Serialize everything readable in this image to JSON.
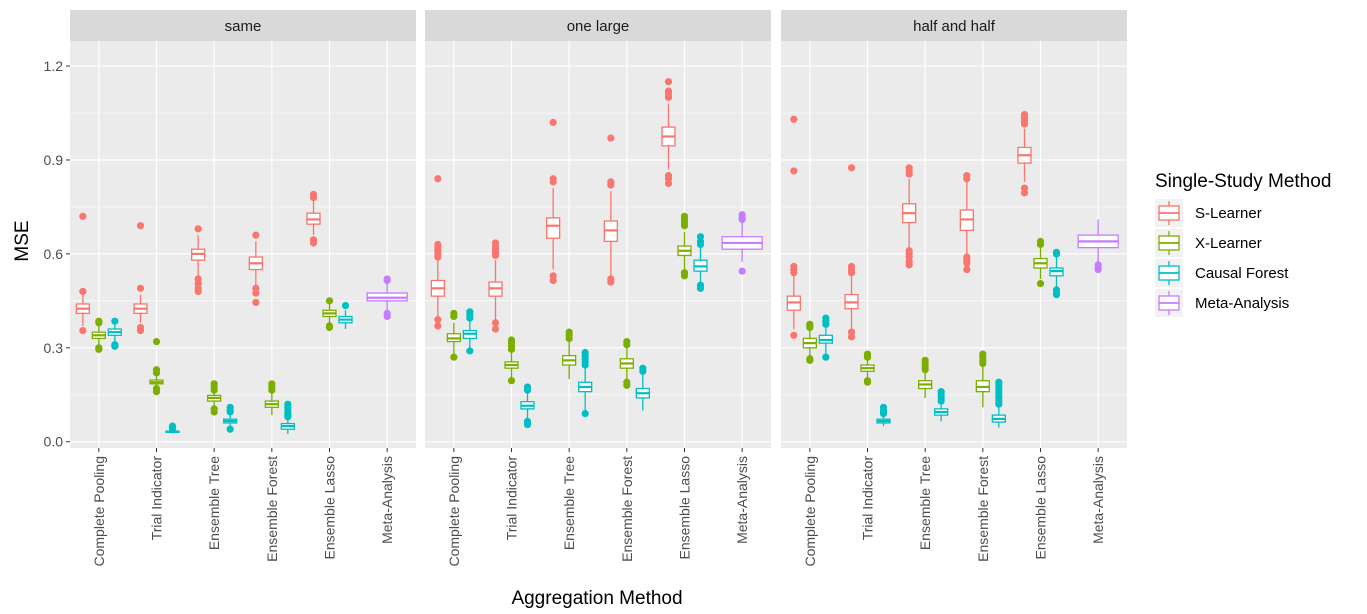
{
  "chart_data": {
    "type": "boxplot",
    "xlabel": "Aggregation Method",
    "ylabel": "MSE",
    "ylim": [
      -0.02,
      1.28
    ],
    "yticks": [
      0.0,
      0.3,
      0.6,
      0.9,
      1.2
    ],
    "ytick_labels": [
      "0.0",
      "0.3",
      "0.6",
      "0.9",
      "1.2"
    ],
    "grid": true,
    "legend": {
      "title": "Single-Study Method",
      "position": "right",
      "entries": [
        {
          "name": "S-Learner",
          "color": "#F8766D"
        },
        {
          "name": "X-Learner",
          "color": "#7CAE00"
        },
        {
          "name": "Causal Forest",
          "color": "#00BFC4"
        },
        {
          "name": "Meta-Analysis",
          "color": "#C77CFF"
        }
      ]
    },
    "categories": [
      "Complete Pooling",
      "Trial Indicator",
      "Ensemble Tree",
      "Ensemble Forest",
      "Ensemble Lasso",
      "Meta-Analysis"
    ],
    "panels": [
      {
        "title": "same",
        "boxes": [
          {
            "cat": 0,
            "method": "S-Learner",
            "whisker_low": 0.37,
            "q1": 0.41,
            "median": 0.425,
            "q3": 0.44,
            "whisker_high": 0.47,
            "outliers": [
              0.72,
              0.48,
              0.355
            ]
          },
          {
            "cat": 0,
            "method": "X-Learner",
            "whisker_low": 0.31,
            "q1": 0.33,
            "median": 0.34,
            "q3": 0.35,
            "whisker_high": 0.37,
            "outliers": [
              0.385,
              0.38,
              0.3,
              0.295
            ]
          },
          {
            "cat": 0,
            "method": "Causal Forest",
            "whisker_low": 0.32,
            "q1": 0.34,
            "median": 0.35,
            "q3": 0.36,
            "whisker_high": 0.38,
            "outliers": [
              0.385,
              0.31,
              0.305
            ]
          },
          {
            "cat": 1,
            "method": "S-Learner",
            "whisker_low": 0.38,
            "q1": 0.41,
            "median": 0.425,
            "q3": 0.44,
            "whisker_high": 0.47,
            "outliers": [
              0.69,
              0.49,
              0.365,
              0.355
            ]
          },
          {
            "cat": 1,
            "method": "X-Learner",
            "whisker_low": 0.17,
            "q1": 0.185,
            "median": 0.19,
            "q3": 0.197,
            "whisker_high": 0.21,
            "outliers": [
              0.32,
              0.23,
              0.22,
              0.17,
              0.16
            ]
          },
          {
            "cat": 1,
            "method": "Causal Forest",
            "whisker_low": 0.026,
            "q1": 0.03,
            "median": 0.032,
            "q3": 0.034,
            "whisker_high": 0.038,
            "outliers": [
              0.05,
              0.045,
              0.042
            ]
          },
          {
            "cat": 2,
            "method": "S-Learner",
            "whisker_low": 0.53,
            "q1": 0.58,
            "median": 0.6,
            "q3": 0.615,
            "whisker_high": 0.66,
            "outliers": [
              0.68,
              0.52,
              0.505,
              0.49,
              0.48
            ]
          },
          {
            "cat": 2,
            "method": "X-Learner",
            "whisker_low": 0.11,
            "q1": 0.13,
            "median": 0.14,
            "q3": 0.148,
            "whisker_high": 0.165,
            "outliers": [
              0.185,
              0.175,
              0.165,
              0.105,
              0.095
            ]
          },
          {
            "cat": 2,
            "method": "Causal Forest",
            "whisker_low": 0.048,
            "q1": 0.06,
            "median": 0.066,
            "q3": 0.072,
            "whisker_high": 0.085,
            "outliers": [
              0.11,
              0.1,
              0.095,
              0.04
            ]
          },
          {
            "cat": 3,
            "method": "S-Learner",
            "whisker_low": 0.5,
            "q1": 0.55,
            "median": 0.57,
            "q3": 0.59,
            "whisker_high": 0.64,
            "outliers": [
              0.66,
              0.49,
              0.475,
              0.445
            ]
          },
          {
            "cat": 3,
            "method": "X-Learner",
            "whisker_low": 0.085,
            "q1": 0.11,
            "median": 0.12,
            "q3": 0.13,
            "whisker_high": 0.16,
            "outliers": [
              0.185,
              0.175,
              0.165
            ]
          },
          {
            "cat": 3,
            "method": "Causal Forest",
            "whisker_low": 0.025,
            "q1": 0.04,
            "median": 0.05,
            "q3": 0.058,
            "whisker_high": 0.075,
            "outliers": [
              0.12,
              0.11,
              0.1,
              0.09,
              0.085,
              0.08
            ]
          },
          {
            "cat": 4,
            "method": "S-Learner",
            "whisker_low": 0.66,
            "q1": 0.695,
            "median": 0.71,
            "q3": 0.73,
            "whisker_high": 0.77,
            "outliers": [
              0.79,
              0.78,
              0.645,
              0.635
            ]
          },
          {
            "cat": 4,
            "method": "X-Learner",
            "whisker_low": 0.38,
            "q1": 0.4,
            "median": 0.41,
            "q3": 0.42,
            "whisker_high": 0.44,
            "outliers": [
              0.45,
              0.37,
              0.365
            ]
          },
          {
            "cat": 4,
            "method": "Causal Forest",
            "whisker_low": 0.36,
            "q1": 0.38,
            "median": 0.39,
            "q3": 0.4,
            "whisker_high": 0.42,
            "outliers": [
              0.435
            ]
          },
          {
            "cat": 5,
            "method": "Meta-Analysis",
            "whisker_low": 0.415,
            "q1": 0.45,
            "median": 0.46,
            "q3": 0.475,
            "whisker_high": 0.51,
            "outliers": [
              0.52,
              0.515,
              0.41,
              0.4
            ]
          }
        ]
      },
      {
        "title": "one large",
        "boxes": [
          {
            "cat": 0,
            "method": "S-Learner",
            "whisker_low": 0.4,
            "q1": 0.465,
            "median": 0.49,
            "q3": 0.515,
            "whisker_high": 0.58,
            "outliers": [
              0.84,
              0.63,
              0.62,
              0.61,
              0.6,
              0.59,
              0.39,
              0.37
            ]
          },
          {
            "cat": 0,
            "method": "X-Learner",
            "whisker_low": 0.28,
            "q1": 0.32,
            "median": 0.33,
            "q3": 0.345,
            "whisker_high": 0.38,
            "outliers": [
              0.41,
              0.4,
              0.27
            ]
          },
          {
            "cat": 0,
            "method": "Causal Forest",
            "whisker_low": 0.3,
            "q1": 0.33,
            "median": 0.345,
            "q3": 0.355,
            "whisker_high": 0.39,
            "outliers": [
              0.415,
              0.405,
              0.395,
              0.29
            ]
          },
          {
            "cat": 1,
            "method": "S-Learner",
            "whisker_low": 0.39,
            "q1": 0.465,
            "median": 0.49,
            "q3": 0.51,
            "whisker_high": 0.58,
            "outliers": [
              0.635,
              0.625,
              0.615,
              0.605,
              0.595,
              0.38,
              0.36
            ]
          },
          {
            "cat": 1,
            "method": "X-Learner",
            "whisker_low": 0.2,
            "q1": 0.235,
            "median": 0.245,
            "q3": 0.255,
            "whisker_high": 0.29,
            "outliers": [
              0.325,
              0.315,
              0.305,
              0.295,
              0.195
            ]
          },
          {
            "cat": 1,
            "method": "Causal Forest",
            "whisker_low": 0.07,
            "q1": 0.105,
            "median": 0.115,
            "q3": 0.128,
            "whisker_high": 0.16,
            "outliers": [
              0.175,
              0.165,
              0.065,
              0.06,
              0.055
            ]
          },
          {
            "cat": 2,
            "method": "S-Learner",
            "whisker_low": 0.55,
            "q1": 0.65,
            "median": 0.69,
            "q3": 0.715,
            "whisker_high": 0.81,
            "outliers": [
              1.02,
              0.84,
              0.83,
              0.53,
              0.515
            ]
          },
          {
            "cat": 2,
            "method": "X-Learner",
            "whisker_low": 0.2,
            "q1": 0.245,
            "median": 0.26,
            "q3": 0.275,
            "whisker_high": 0.32,
            "outliers": [
              0.35,
              0.34,
              0.33
            ]
          },
          {
            "cat": 2,
            "method": "Causal Forest",
            "whisker_low": 0.095,
            "q1": 0.16,
            "median": 0.175,
            "q3": 0.19,
            "whisker_high": 0.235,
            "outliers": [
              0.285,
              0.275,
              0.265,
              0.255,
              0.245,
              0.09
            ]
          },
          {
            "cat": 3,
            "method": "S-Learner",
            "whisker_low": 0.53,
            "q1": 0.64,
            "median": 0.675,
            "q3": 0.705,
            "whisker_high": 0.8,
            "outliers": [
              0.97,
              0.83,
              0.82,
              0.52,
              0.51
            ]
          },
          {
            "cat": 3,
            "method": "X-Learner",
            "whisker_low": 0.2,
            "q1": 0.235,
            "median": 0.25,
            "q3": 0.265,
            "whisker_high": 0.3,
            "outliers": [
              0.32,
              0.31,
              0.19,
              0.18
            ]
          },
          {
            "cat": 3,
            "method": "Causal Forest",
            "whisker_low": 0.1,
            "q1": 0.14,
            "median": 0.155,
            "q3": 0.17,
            "whisker_high": 0.215,
            "outliers": [
              0.235,
              0.225
            ]
          },
          {
            "cat": 4,
            "method": "S-Learner",
            "whisker_low": 0.87,
            "q1": 0.945,
            "median": 0.975,
            "q3": 1.005,
            "whisker_high": 1.08,
            "outliers": [
              1.15,
              1.12,
              1.11,
              1.1,
              0.85,
              0.84,
              0.825
            ]
          },
          {
            "cat": 4,
            "method": "X-Learner",
            "whisker_low": 0.55,
            "q1": 0.595,
            "median": 0.61,
            "q3": 0.625,
            "whisker_high": 0.67,
            "outliers": [
              0.72,
              0.71,
              0.7,
              0.69,
              0.54,
              0.53
            ]
          },
          {
            "cat": 4,
            "method": "Causal Forest",
            "whisker_low": 0.51,
            "q1": 0.545,
            "median": 0.56,
            "q3": 0.58,
            "whisker_high": 0.62,
            "outliers": [
              0.655,
              0.64,
              0.63,
              0.5,
              0.49
            ]
          },
          {
            "cat": 5,
            "method": "Meta-Analysis",
            "whisker_low": 0.575,
            "q1": 0.615,
            "median": 0.635,
            "q3": 0.655,
            "whisker_high": 0.7,
            "outliers": [
              0.725,
              0.715,
              0.71,
              0.545
            ]
          }
        ]
      },
      {
        "title": "half and half",
        "boxes": [
          {
            "cat": 0,
            "method": "S-Learner",
            "whisker_low": 0.36,
            "q1": 0.42,
            "median": 0.445,
            "q3": 0.465,
            "whisker_high": 0.53,
            "outliers": [
              1.03,
              0.865,
              0.56,
              0.55,
              0.54,
              0.34
            ]
          },
          {
            "cat": 0,
            "method": "X-Learner",
            "whisker_low": 0.275,
            "q1": 0.3,
            "median": 0.315,
            "q3": 0.33,
            "whisker_high": 0.36,
            "outliers": [
              0.375,
              0.37,
              0.365,
              0.265,
              0.26
            ]
          },
          {
            "cat": 0,
            "method": "Causal Forest",
            "whisker_low": 0.28,
            "q1": 0.315,
            "median": 0.325,
            "q3": 0.34,
            "whisker_high": 0.37,
            "outliers": [
              0.395,
              0.385,
              0.375,
              0.27
            ]
          },
          {
            "cat": 1,
            "method": "S-Learner",
            "whisker_low": 0.36,
            "q1": 0.425,
            "median": 0.445,
            "q3": 0.47,
            "whisker_high": 0.53,
            "outliers": [
              0.875,
              0.56,
              0.55,
              0.54,
              0.35,
              0.335
            ]
          },
          {
            "cat": 1,
            "method": "X-Learner",
            "whisker_low": 0.205,
            "q1": 0.225,
            "median": 0.235,
            "q3": 0.245,
            "whisker_high": 0.265,
            "outliers": [
              0.28,
              0.275,
              0.27,
              0.195,
              0.19
            ]
          },
          {
            "cat": 1,
            "method": "Causal Forest",
            "whisker_low": 0.05,
            "q1": 0.06,
            "median": 0.066,
            "q3": 0.072,
            "whisker_high": 0.085,
            "outliers": [
              0.11,
              0.1,
              0.095,
              0.09
            ]
          },
          {
            "cat": 2,
            "method": "S-Learner",
            "whisker_low": 0.62,
            "q1": 0.7,
            "median": 0.73,
            "q3": 0.76,
            "whisker_high": 0.84,
            "outliers": [
              0.875,
              0.865,
              0.855,
              0.61,
              0.6,
              0.59,
              0.575,
              0.565
            ]
          },
          {
            "cat": 2,
            "method": "X-Learner",
            "whisker_low": 0.14,
            "q1": 0.17,
            "median": 0.183,
            "q3": 0.195,
            "whisker_high": 0.225,
            "outliers": [
              0.26,
              0.25,
              0.24,
              0.23
            ]
          },
          {
            "cat": 2,
            "method": "Causal Forest",
            "whisker_low": 0.065,
            "q1": 0.085,
            "median": 0.095,
            "q3": 0.105,
            "whisker_high": 0.125,
            "outliers": [
              0.16,
              0.15,
              0.14,
              0.13
            ]
          },
          {
            "cat": 3,
            "method": "S-Learner",
            "whisker_low": 0.6,
            "q1": 0.675,
            "median": 0.71,
            "q3": 0.74,
            "whisker_high": 0.83,
            "outliers": [
              0.85,
              0.84,
              0.59,
              0.58,
              0.57,
              0.55
            ]
          },
          {
            "cat": 3,
            "method": "X-Learner",
            "whisker_low": 0.11,
            "q1": 0.16,
            "median": 0.175,
            "q3": 0.195,
            "whisker_high": 0.245,
            "outliers": [
              0.28,
              0.27,
              0.26,
              0.25
            ]
          },
          {
            "cat": 3,
            "method": "Causal Forest",
            "whisker_low": 0.045,
            "q1": 0.063,
            "median": 0.073,
            "q3": 0.085,
            "whisker_high": 0.115,
            "outliers": [
              0.19,
              0.18,
              0.17,
              0.16,
              0.15,
              0.14,
              0.13,
              0.12
            ]
          },
          {
            "cat": 4,
            "method": "S-Learner",
            "whisker_low": 0.83,
            "q1": 0.89,
            "median": 0.915,
            "q3": 0.94,
            "whisker_high": 1.0,
            "outliers": [
              1.045,
              1.035,
              1.025,
              1.015,
              0.81,
              0.795
            ]
          },
          {
            "cat": 4,
            "method": "X-Learner",
            "whisker_low": 0.52,
            "q1": 0.555,
            "median": 0.57,
            "q3": 0.585,
            "whisker_high": 0.62,
            "outliers": [
              0.64,
              0.63,
              0.505
            ]
          },
          {
            "cat": 4,
            "method": "Causal Forest",
            "whisker_low": 0.495,
            "q1": 0.53,
            "median": 0.545,
            "q3": 0.555,
            "whisker_high": 0.59,
            "outliers": [
              0.605,
              0.6,
              0.485,
              0.475,
              0.47
            ]
          },
          {
            "cat": 5,
            "method": "Meta-Analysis",
            "whisker_low": 0.575,
            "q1": 0.62,
            "median": 0.64,
            "q3": 0.66,
            "whisker_high": 0.71,
            "outliers": [
              0.565,
              0.555,
              0.55
            ]
          }
        ]
      }
    ]
  }
}
